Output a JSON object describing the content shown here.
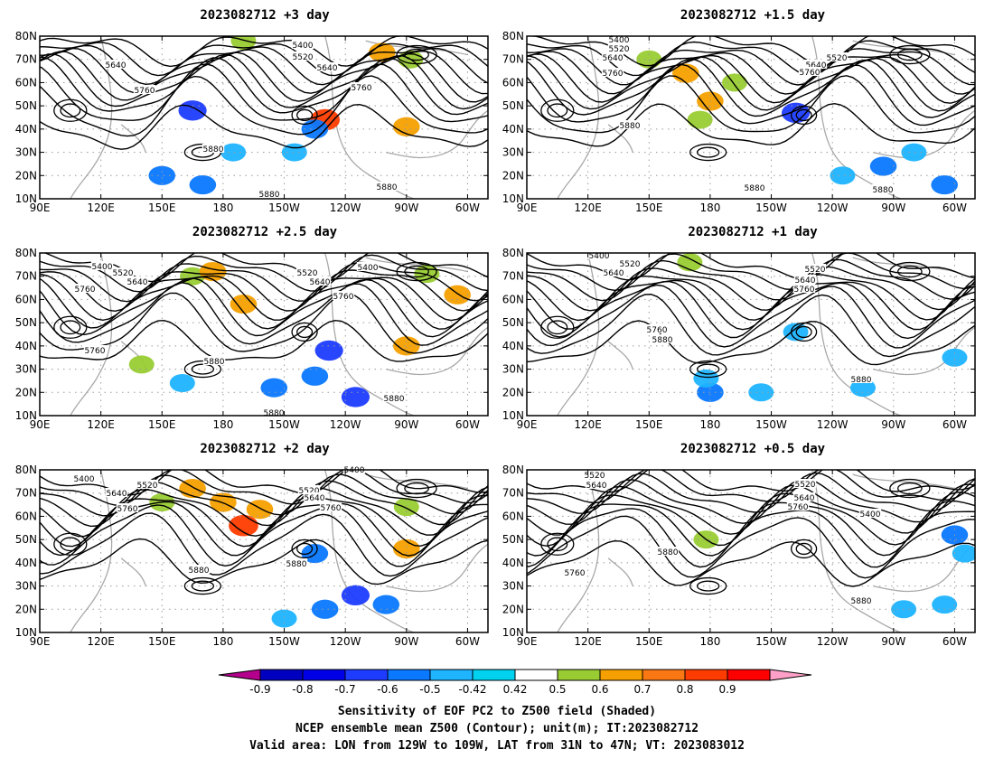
{
  "panels": [
    {
      "title": "2023082712 +3 day",
      "contour_labels": [
        "5400",
        "5520",
        "5640",
        "5640",
        "5760",
        "5760",
        "5880",
        "5880",
        "5880"
      ],
      "shading": [
        {
          "lon": 165,
          "lat": 48,
          "value": -0.7
        },
        {
          "lon": 230,
          "lat": 44,
          "value": 0.8
        },
        {
          "lon": 225,
          "lat": 40,
          "value": -0.6
        },
        {
          "lon": 270,
          "lat": 41,
          "value": 0.6
        },
        {
          "lon": 258,
          "lat": 73,
          "value": 0.6
        },
        {
          "lon": 272,
          "lat": 70,
          "value": 0.5
        },
        {
          "lon": 190,
          "lat": 78,
          "value": 0.5
        },
        {
          "lon": 150,
          "lat": 20,
          "value": -0.6
        },
        {
          "lon": 185,
          "lat": 30,
          "value": -0.5
        },
        {
          "lon": 170,
          "lat": 16,
          "value": -0.6
        },
        {
          "lon": 215,
          "lat": 30,
          "value": -0.5
        }
      ]
    },
    {
      "title": "2023082712 +1.5 day",
      "contour_labels": [
        "5400",
        "5520",
        "5640",
        "5760",
        "5520",
        "5640",
        "5760",
        "5880",
        "5880",
        "5880"
      ],
      "shading": [
        {
          "lon": 150,
          "lat": 70,
          "value": 0.5
        },
        {
          "lon": 168,
          "lat": 64,
          "value": 0.6
        },
        {
          "lon": 192,
          "lat": 60,
          "value": 0.5
        },
        {
          "lon": 180,
          "lat": 52,
          "value": 0.6
        },
        {
          "lon": 175,
          "lat": 44,
          "value": 0.5
        },
        {
          "lon": 222,
          "lat": 47,
          "value": -0.7
        },
        {
          "lon": 265,
          "lat": 24,
          "value": -0.6
        },
        {
          "lon": 280,
          "lat": 30,
          "value": -0.5
        },
        {
          "lon": 295,
          "lat": 16,
          "value": -0.6
        },
        {
          "lon": 245,
          "lat": 20,
          "value": -0.5
        }
      ]
    },
    {
      "title": "2023082712 +2.5 day",
      "contour_labels": [
        "5400",
        "5520",
        "5640",
        "5760",
        "5520",
        "5640",
        "5760",
        "5400",
        "5760",
        "5880",
        "5880",
        "5880"
      ],
      "shading": [
        {
          "lon": 165,
          "lat": 70,
          "value": 0.5
        },
        {
          "lon": 175,
          "lat": 72,
          "value": 0.6
        },
        {
          "lon": 190,
          "lat": 58,
          "value": 0.6
        },
        {
          "lon": 280,
          "lat": 71,
          "value": 0.5
        },
        {
          "lon": 295,
          "lat": 62,
          "value": 0.6
        },
        {
          "lon": 270,
          "lat": 40,
          "value": 0.6
        },
        {
          "lon": 232,
          "lat": 38,
          "value": -0.7
        },
        {
          "lon": 225,
          "lat": 27,
          "value": -0.6
        },
        {
          "lon": 205,
          "lat": 22,
          "value": -0.6
        },
        {
          "lon": 245,
          "lat": 18,
          "value": -0.7
        },
        {
          "lon": 160,
          "lat": 24,
          "value": -0.5
        },
        {
          "lon": 140,
          "lat": 32,
          "value": 0.5
        }
      ]
    },
    {
      "title": "2023082712 +1 day",
      "contour_labels": [
        "5400",
        "5520",
        "5640",
        "5520",
        "5640",
        "5760",
        "5760",
        "5880",
        "5880"
      ],
      "shading": [
        {
          "lon": 180,
          "lat": 20,
          "value": -0.6
        },
        {
          "lon": 178,
          "lat": 26,
          "value": -0.5
        },
        {
          "lon": 205,
          "lat": 20,
          "value": -0.5
        },
        {
          "lon": 255,
          "lat": 22,
          "value": -0.5
        },
        {
          "lon": 300,
          "lat": 35,
          "value": -0.5
        },
        {
          "lon": 170,
          "lat": 76,
          "value": 0.5
        },
        {
          "lon": 222,
          "lat": 46,
          "value": -0.5
        }
      ]
    },
    {
      "title": "2023082712 +2 day",
      "contour_labels": [
        "5400",
        "5520",
        "5640",
        "5760",
        "5520",
        "5640",
        "5760",
        "5400",
        "5880",
        "5880"
      ],
      "shading": [
        {
          "lon": 165,
          "lat": 72,
          "value": 0.6
        },
        {
          "lon": 180,
          "lat": 66,
          "value": 0.6
        },
        {
          "lon": 190,
          "lat": 56,
          "value": 0.8
        },
        {
          "lon": 198,
          "lat": 63,
          "value": 0.6
        },
        {
          "lon": 270,
          "lat": 46,
          "value": 0.6
        },
        {
          "lon": 225,
          "lat": 44,
          "value": -0.6
        },
        {
          "lon": 245,
          "lat": 26,
          "value": -0.7
        },
        {
          "lon": 230,
          "lat": 20,
          "value": -0.6
        },
        {
          "lon": 260,
          "lat": 22,
          "value": -0.6
        },
        {
          "lon": 210,
          "lat": 16,
          "value": -0.5
        },
        {
          "lon": 150,
          "lat": 66,
          "value": 0.5
        },
        {
          "lon": 270,
          "lat": 64,
          "value": 0.5
        }
      ]
    },
    {
      "title": "2023082712 +0.5 day",
      "contour_labels": [
        "5520",
        "5640",
        "5520",
        "5640",
        "5760",
        "5400",
        "5880",
        "5760",
        "5880"
      ],
      "shading": [
        {
          "lon": 300,
          "lat": 52,
          "value": -0.6
        },
        {
          "lon": 305,
          "lat": 44,
          "value": -0.5
        },
        {
          "lon": 178,
          "lat": 50,
          "value": 0.5
        },
        {
          "lon": 275,
          "lat": 20,
          "value": -0.5
        },
        {
          "lon": 295,
          "lat": 22,
          "value": -0.5
        }
      ]
    }
  ],
  "axes": {
    "lat_labels": [
      "10N",
      "20N",
      "30N",
      "40N",
      "50N",
      "60N",
      "70N",
      "80N"
    ],
    "lon_labels": [
      "90E",
      "120E",
      "150E",
      "180",
      "150W",
      "120W",
      "90W",
      "60W"
    ]
  },
  "colorbar": {
    "labels": [
      "-0.9",
      "-0.8",
      "-0.7",
      "-0.6",
      "-0.5",
      "-0.42",
      "0.42",
      "0.5",
      "0.6",
      "0.7",
      "0.8",
      "0.9"
    ],
    "colors": [
      "#0000c0",
      "#0000e6",
      "#1e3cff",
      "#0a78ff",
      "#1eb4ff",
      "#00d2f0",
      "#ffffff",
      "#99cc33",
      "#f5a000",
      "#fa7814",
      "#ff3c00",
      "#ff0000"
    ],
    "low_color": "#b4008c",
    "high_color": "#ffa0c8"
  },
  "caption": {
    "line1": "Sensitivity of EOF PC2 to Z500 field (Shaded)",
    "line2": "NCEP ensemble mean Z500 (Contour); unit(m); IT:2023082712",
    "line3": "Valid area: LON from 129W to 109W, LAT from 31N to 47N; VT: 2023083012"
  }
}
